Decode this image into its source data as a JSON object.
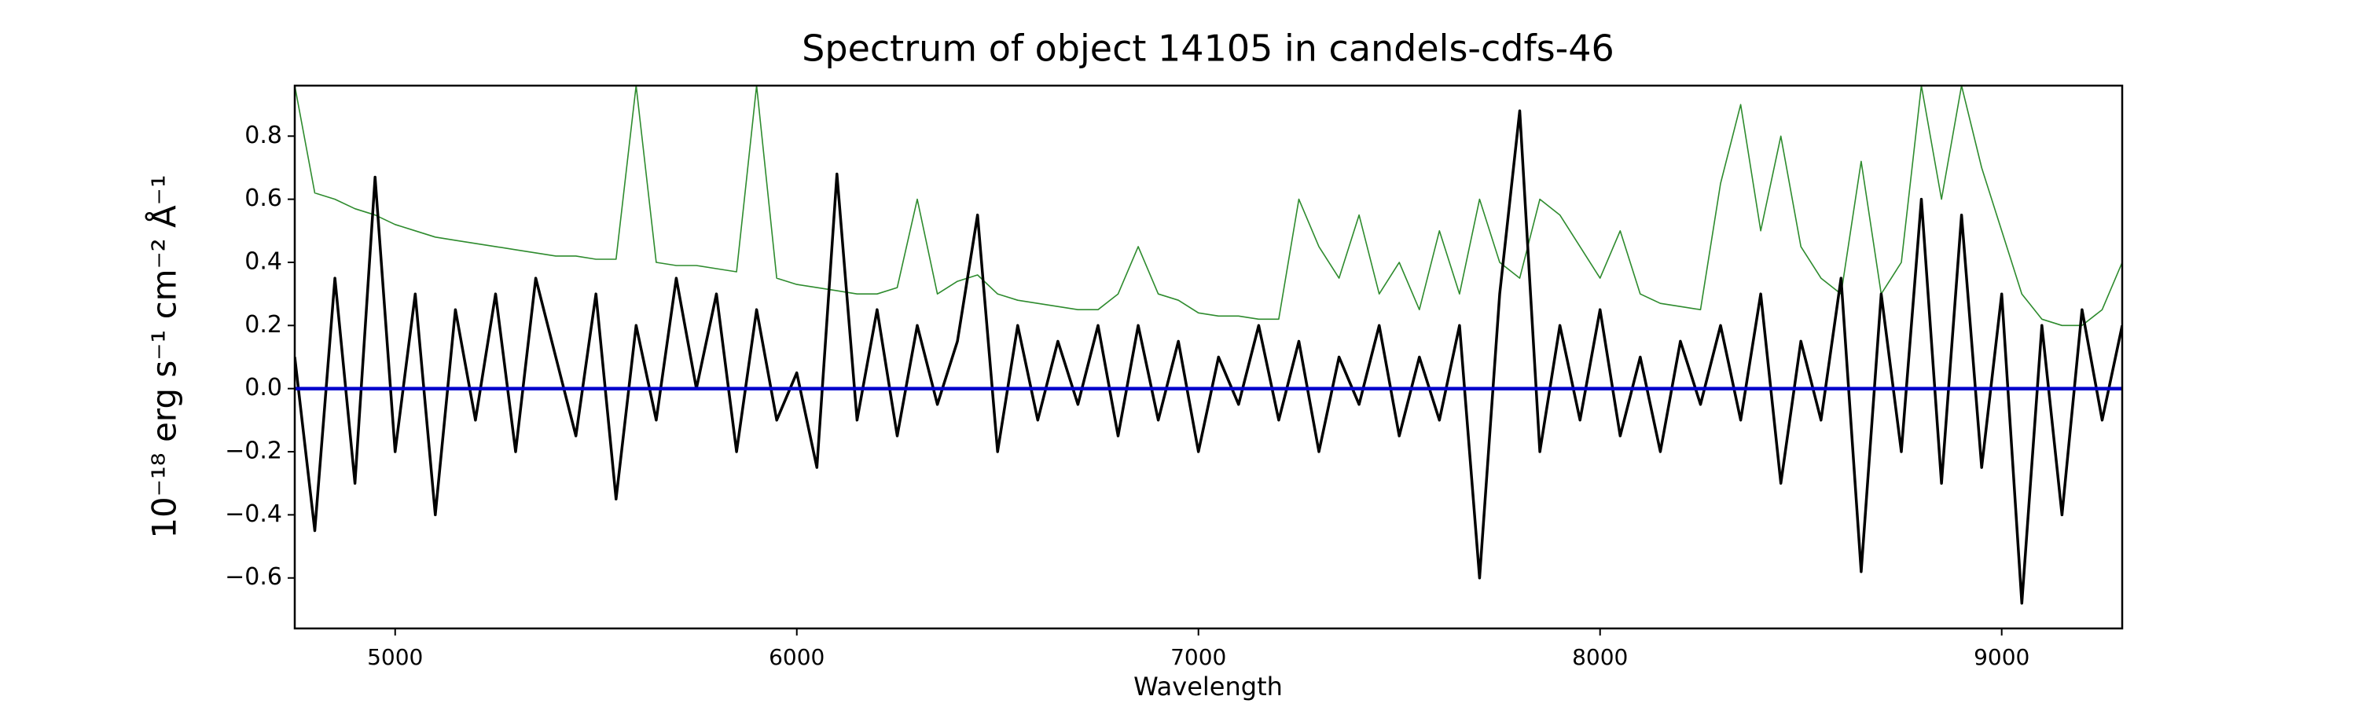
{
  "chart_data": {
    "type": "line",
    "title": "Spectrum of object 14105 in candels-cdfs-46",
    "xlabel": "Wavelength",
    "ylabel": "10⁻¹⁸ erg s⁻¹ cm⁻² Å⁻¹",
    "x": [
      4750,
      4800,
      4850,
      4900,
      4950,
      5000,
      5050,
      5100,
      5150,
      5200,
      5250,
      5300,
      5350,
      5400,
      5450,
      5500,
      5550,
      5600,
      5650,
      5700,
      5750,
      5800,
      5850,
      5900,
      5950,
      6000,
      6050,
      6100,
      6150,
      6200,
      6250,
      6300,
      6350,
      6400,
      6450,
      6500,
      6550,
      6600,
      6650,
      6700,
      6750,
      6800,
      6850,
      6900,
      6950,
      7000,
      7050,
      7100,
      7150,
      7200,
      7250,
      7300,
      7350,
      7400,
      7450,
      7500,
      7550,
      7600,
      7650,
      7700,
      7750,
      7800,
      7850,
      7900,
      7950,
      8000,
      8050,
      8100,
      8150,
      8200,
      8250,
      8300,
      8350,
      8400,
      8450,
      8500,
      8550,
      8600,
      8650,
      8700,
      8750,
      8800,
      8850,
      8900,
      8950,
      9000,
      9050,
      9100,
      9150,
      9200,
      9250,
      9300
    ],
    "series": [
      {
        "color": "#2e8b2e",
        "width": 1.6,
        "values": [
          0.96,
          0.62,
          0.6,
          0.57,
          0.55,
          0.52,
          0.5,
          0.48,
          0.47,
          0.46,
          0.45,
          0.44,
          0.43,
          0.42,
          0.42,
          0.41,
          0.41,
          0.96,
          0.4,
          0.39,
          0.39,
          0.38,
          0.37,
          0.96,
          0.35,
          0.33,
          0.32,
          0.31,
          0.3,
          0.3,
          0.32,
          0.6,
          0.3,
          0.34,
          0.36,
          0.3,
          0.28,
          0.27,
          0.26,
          0.25,
          0.25,
          0.3,
          0.45,
          0.3,
          0.28,
          0.24,
          0.23,
          0.23,
          0.22,
          0.22,
          0.6,
          0.45,
          0.35,
          0.55,
          0.3,
          0.4,
          0.25,
          0.5,
          0.3,
          0.6,
          0.4,
          0.35,
          0.6,
          0.55,
          0.45,
          0.35,
          0.5,
          0.3,
          0.27,
          0.26,
          0.25,
          0.65,
          0.9,
          0.5,
          0.8,
          0.45,
          0.35,
          0.3,
          0.72,
          0.3,
          0.4,
          0.96,
          0.6,
          0.96,
          0.7,
          0.5,
          0.3,
          0.22,
          0.2,
          0.2,
          0.25,
          0.4
        ]
      },
      {
        "color": "#000000",
        "width": 3.5,
        "values": [
          0.1,
          -0.45,
          0.35,
          -0.3,
          0.67,
          -0.2,
          0.3,
          -0.4,
          0.25,
          -0.1,
          0.3,
          -0.2,
          0.35,
          0.1,
          -0.15,
          0.3,
          -0.35,
          0.2,
          -0.1,
          0.35,
          0.0,
          0.3,
          -0.2,
          0.25,
          -0.1,
          0.05,
          -0.25,
          0.68,
          -0.1,
          0.25,
          -0.15,
          0.2,
          -0.05,
          0.15,
          0.55,
          -0.2,
          0.2,
          -0.1,
          0.15,
          -0.05,
          0.2,
          -0.15,
          0.2,
          -0.1,
          0.15,
          -0.2,
          0.1,
          -0.05,
          0.2,
          -0.1,
          0.15,
          -0.2,
          0.1,
          -0.05,
          0.2,
          -0.15,
          0.1,
          -0.1,
          0.2,
          -0.6,
          0.3,
          0.88,
          -0.2,
          0.2,
          -0.1,
          0.25,
          -0.15,
          0.1,
          -0.2,
          0.15,
          -0.05,
          0.2,
          -0.1,
          0.3,
          -0.3,
          0.15,
          -0.1,
          0.35,
          -0.58,
          0.3,
          -0.2,
          0.6,
          -0.3,
          0.55,
          -0.25,
          0.3,
          -0.68,
          0.2,
          -0.4,
          0.25,
          -0.1,
          0.2
        ]
      },
      {
        "color": "#0000cc",
        "width": 4.5,
        "values": [
          0,
          0,
          0,
          0,
          0,
          0,
          0,
          0,
          0,
          0,
          0,
          0,
          0,
          0,
          0,
          0,
          0,
          0,
          0,
          0,
          0,
          0,
          0,
          0,
          0,
          0,
          0,
          0,
          0,
          0,
          0,
          0,
          0,
          0,
          0,
          0,
          0,
          0,
          0,
          0,
          0,
          0,
          0,
          0,
          0,
          0,
          0,
          0,
          0,
          0,
          0,
          0,
          0,
          0,
          0,
          0,
          0,
          0,
          0,
          0,
          0,
          0,
          0,
          0,
          0,
          0,
          0,
          0,
          0,
          0,
          0,
          0,
          0,
          0,
          0,
          0,
          0,
          0,
          0,
          0,
          0,
          0,
          0,
          0,
          0,
          0,
          0,
          0,
          0,
          0,
          0,
          0
        ]
      }
    ],
    "xlim": [
      4750,
      9300
    ],
    "ylim": [
      -0.76,
      0.96
    ],
    "xticks": [
      5000,
      6000,
      7000,
      8000,
      9000
    ],
    "yticks": [
      {
        "value": -0.6,
        "label": "−0.6"
      },
      {
        "value": -0.4,
        "label": "−0.4"
      },
      {
        "value": -0.2,
        "label": "−0.2"
      },
      {
        "value": 0,
        "label": "0.0"
      },
      {
        "value": 0.2,
        "label": "0.2"
      },
      {
        "value": 0.4,
        "label": "0.4"
      },
      {
        "value": 0.6,
        "label": "0.6"
      },
      {
        "value": 0.8,
        "label": "0.8"
      }
    ]
  }
}
